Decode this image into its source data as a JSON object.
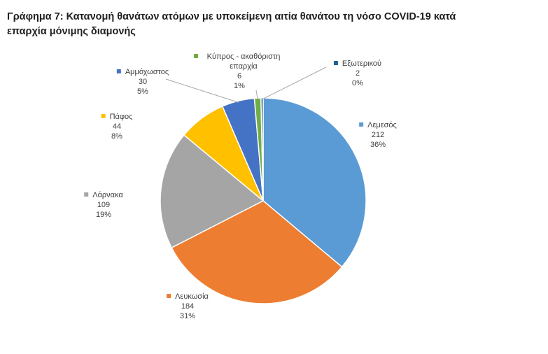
{
  "title": "Γράφημα 7: Κατανομή θανάτων ατόμων με υποκείμενη αιτία θανάτου τη νόσο COVID-19 κατά επαρχία μόνιμης διαμονής",
  "chart_data": {
    "type": "pie",
    "title": "Γράφημα 7: Κατανομή θανάτων ατόμων με υποκείμενη αιτία θανάτου τη νόσο COVID-19 κατά επαρχία μόνιμης διαμονής",
    "legend": "none",
    "slices": [
      {
        "label": "Λεμεσός",
        "value": 212,
        "percent": "36%",
        "color": "#5b9bd5"
      },
      {
        "label": "Λευκωσία",
        "value": 184,
        "percent": "31%",
        "color": "#ed7d31"
      },
      {
        "label": "Λάρνακα",
        "value": 109,
        "percent": "19%",
        "color": "#a5a5a5"
      },
      {
        "label": "Πάφος",
        "value": 44,
        "percent": "8%",
        "color": "#ffc000"
      },
      {
        "label": "Αμμόχωστος",
        "value": 30,
        "percent": "5%",
        "color": "#4472c4"
      },
      {
        "label": "Κύπρος - ακαθόριστη επαρχία",
        "value": 6,
        "percent": "1%",
        "color": "#70ad47"
      },
      {
        "label": "Εξωτερικού",
        "value": 2,
        "percent": "0%",
        "color": "#255e91"
      }
    ]
  }
}
